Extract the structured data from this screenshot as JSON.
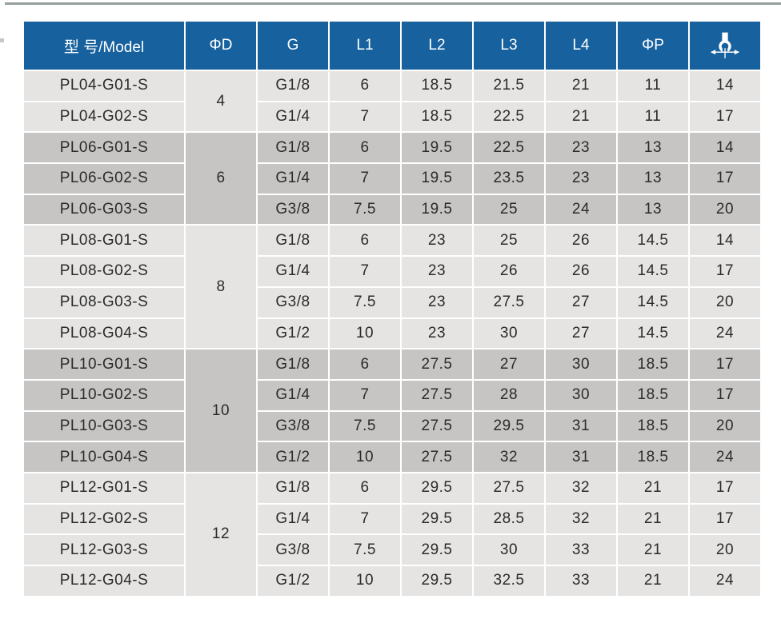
{
  "colors": {
    "header_bg": "#17619E",
    "group_light": "#E5E4E2",
    "group_dark": "#C6C5C3",
    "grid": "#FFFFFF",
    "header_text": "#FFFFFF",
    "body_text": "#2B2B2B",
    "top_rule": "#96A09B"
  },
  "table": {
    "headers": [
      "型 号/Model",
      "ΦD",
      "G",
      "L1",
      "L2",
      "L3",
      "L4",
      "ΦP"
    ],
    "header_icon": "wrench-flats-icon",
    "groups": [
      {
        "phi_d": "4",
        "rows": [
          {
            "model": "PL04-G01-S",
            "g": "G1/8",
            "l1": "6",
            "l2": "18.5",
            "l3": "21.5",
            "l4": "21",
            "phi_p": "11",
            "wrench": "14"
          },
          {
            "model": "PL04-G02-S",
            "g": "G1/4",
            "l1": "7",
            "l2": "18.5",
            "l3": "22.5",
            "l4": "21",
            "phi_p": "11",
            "wrench": "17"
          }
        ]
      },
      {
        "phi_d": "6",
        "rows": [
          {
            "model": "PL06-G01-S",
            "g": "G1/8",
            "l1": "6",
            "l2": "19.5",
            "l3": "22.5",
            "l4": "23",
            "phi_p": "13",
            "wrench": "14"
          },
          {
            "model": "PL06-G02-S",
            "g": "G1/4",
            "l1": "7",
            "l2": "19.5",
            "l3": "23.5",
            "l4": "23",
            "phi_p": "13",
            "wrench": "17"
          },
          {
            "model": "PL06-G03-S",
            "g": "G3/8",
            "l1": "7.5",
            "l2": "19.5",
            "l3": "25",
            "l4": "24",
            "phi_p": "13",
            "wrench": "20"
          }
        ]
      },
      {
        "phi_d": "8",
        "rows": [
          {
            "model": "PL08-G01-S",
            "g": "G1/8",
            "l1": "6",
            "l2": "23",
            "l3": "25",
            "l4": "26",
            "phi_p": "14.5",
            "wrench": "14"
          },
          {
            "model": "PL08-G02-S",
            "g": "G1/4",
            "l1": "7",
            "l2": "23",
            "l3": "26",
            "l4": "26",
            "phi_p": "14.5",
            "wrench": "17"
          },
          {
            "model": "PL08-G03-S",
            "g": "G3/8",
            "l1": "7.5",
            "l2": "23",
            "l3": "27.5",
            "l4": "27",
            "phi_p": "14.5",
            "wrench": "20"
          },
          {
            "model": "PL08-G04-S",
            "g": "G1/2",
            "l1": "10",
            "l2": "23",
            "l3": "30",
            "l4": "27",
            "phi_p": "14.5",
            "wrench": "24"
          }
        ]
      },
      {
        "phi_d": "10",
        "rows": [
          {
            "model": "PL10-G01-S",
            "g": "G1/8",
            "l1": "6",
            "l2": "27.5",
            "l3": "27",
            "l4": "30",
            "phi_p": "18.5",
            "wrench": "17"
          },
          {
            "model": "PL10-G02-S",
            "g": "G1/4",
            "l1": "7",
            "l2": "27.5",
            "l3": "28",
            "l4": "30",
            "phi_p": "18.5",
            "wrench": "17"
          },
          {
            "model": "PL10-G03-S",
            "g": "G3/8",
            "l1": "7.5",
            "l2": "27.5",
            "l3": "29.5",
            "l4": "31",
            "phi_p": "18.5",
            "wrench": "20"
          },
          {
            "model": "PL10-G04-S",
            "g": "G1/2",
            "l1": "10",
            "l2": "27.5",
            "l3": "32",
            "l4": "31",
            "phi_p": "18.5",
            "wrench": "24"
          }
        ]
      },
      {
        "phi_d": "12",
        "rows": [
          {
            "model": "PL12-G01-S",
            "g": "G1/8",
            "l1": "6",
            "l2": "29.5",
            "l3": "27.5",
            "l4": "32",
            "phi_p": "21",
            "wrench": "17"
          },
          {
            "model": "PL12-G02-S",
            "g": "G1/4",
            "l1": "7",
            "l2": "29.5",
            "l3": "28.5",
            "l4": "32",
            "phi_p": "21",
            "wrench": "17"
          },
          {
            "model": "PL12-G03-S",
            "g": "G3/8",
            "l1": "7.5",
            "l2": "29.5",
            "l3": "30",
            "l4": "33",
            "phi_p": "21",
            "wrench": "20"
          },
          {
            "model": "PL12-G04-S",
            "g": "G1/2",
            "l1": "10",
            "l2": "29.5",
            "l3": "32.5",
            "l4": "33",
            "phi_p": "21",
            "wrench": "24"
          }
        ]
      }
    ]
  }
}
